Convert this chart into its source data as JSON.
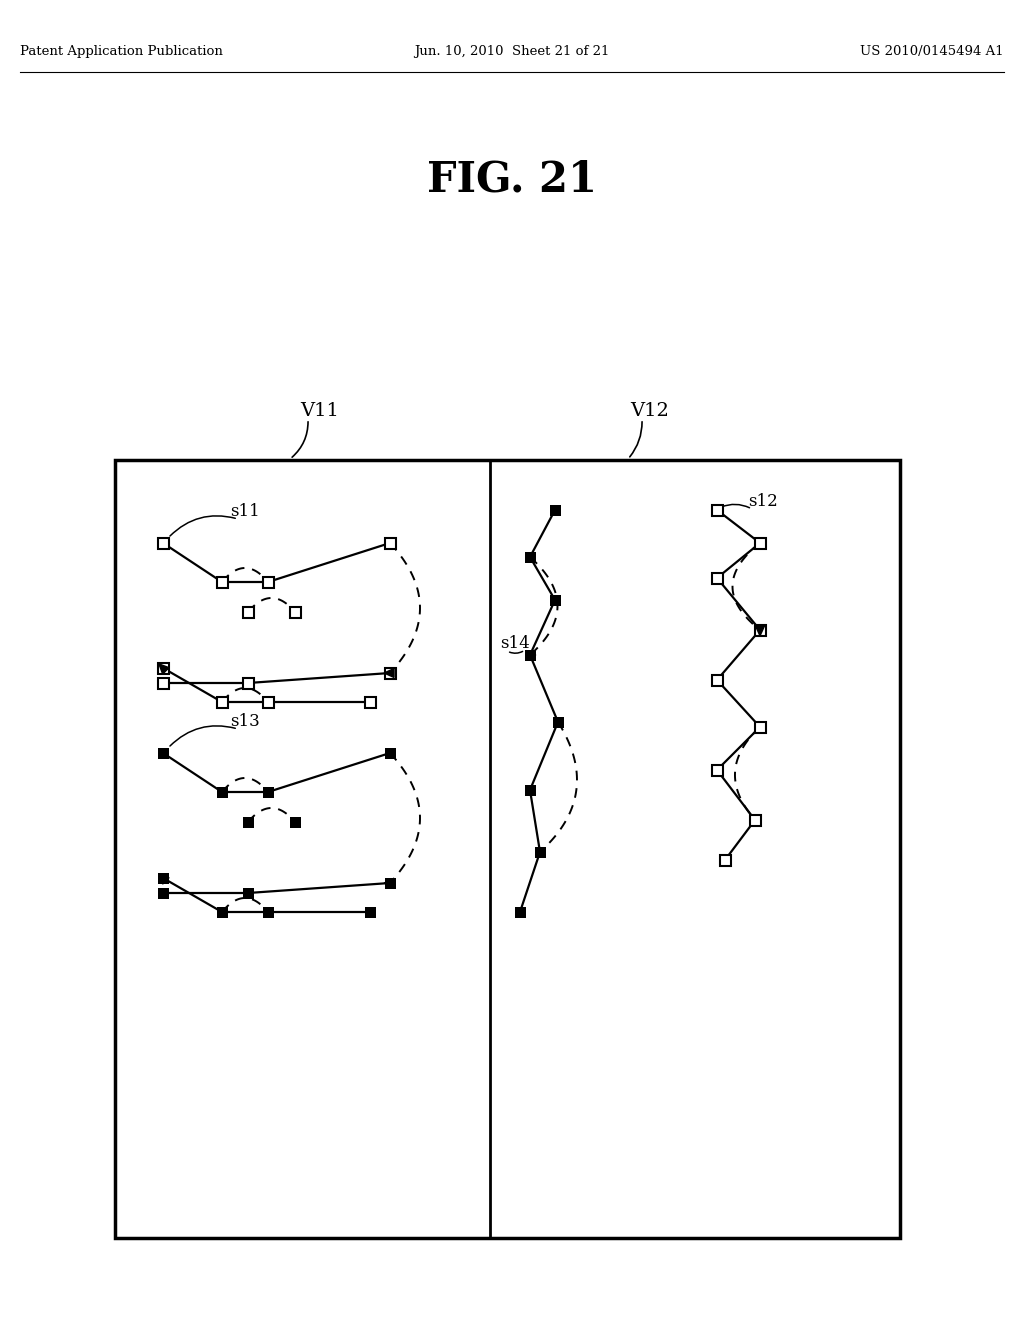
{
  "title": "FIG. 21",
  "header_left": "Patent Application Publication",
  "header_mid": "Jun. 10, 2010  Sheet 21 of 21",
  "header_right": "US 2010/0145494 A1",
  "bg_color": "#ffffff",
  "fg_color": "#000000",
  "label_V11": "V11",
  "label_V12": "V12",
  "label_s11": "s11",
  "label_s12": "s12",
  "label_s13": "s13",
  "label_s14": "s14"
}
